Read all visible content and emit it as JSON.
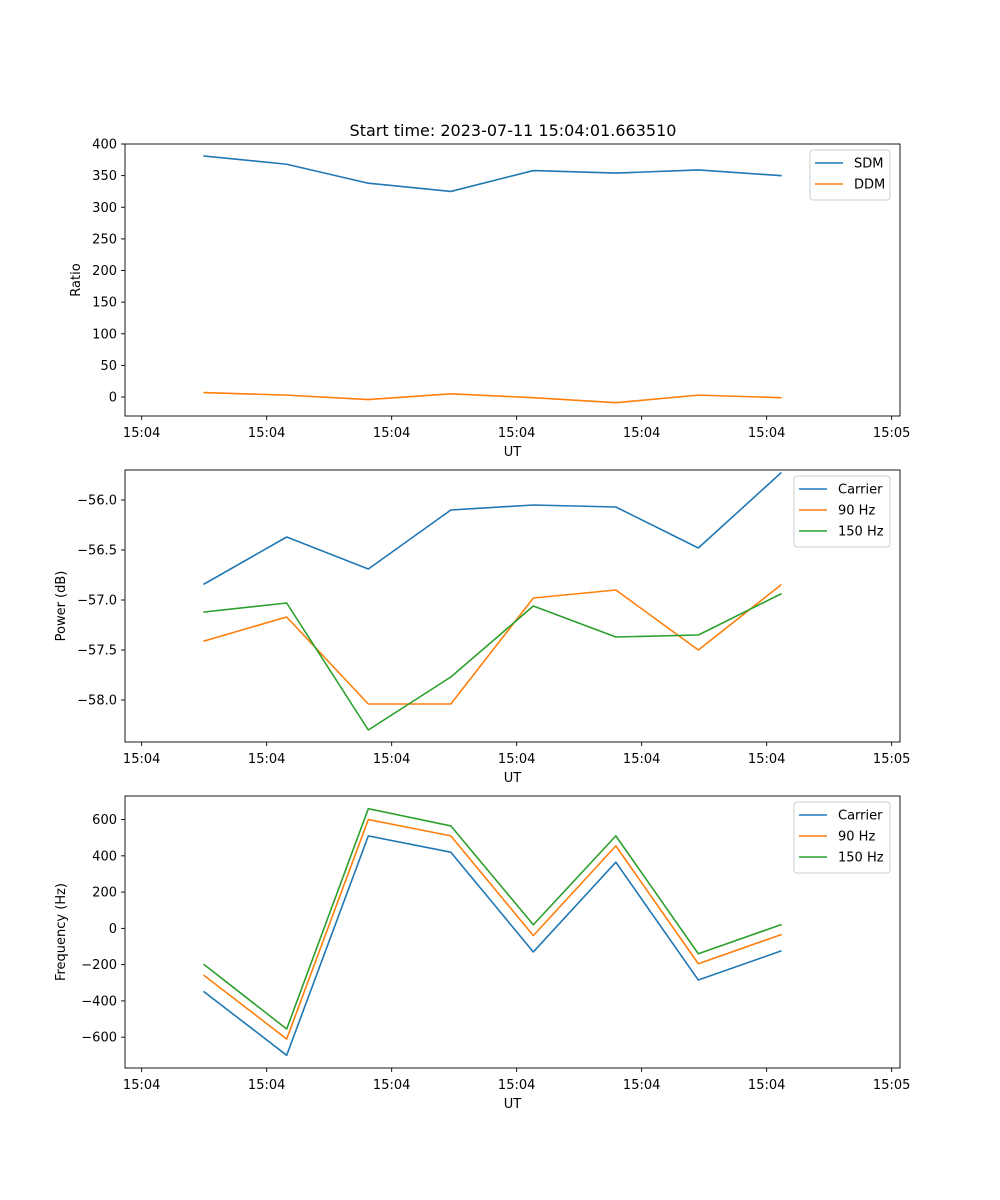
{
  "title": "Start time: 2023-07-11 15:04:01.663510",
  "chart_data": [
    {
      "type": "line",
      "xlabel": "UT",
      "ylabel": "Ratio",
      "ylim": [
        -30,
        400
      ],
      "yticks": [
        0,
        50,
        100,
        150,
        200,
        250,
        300,
        350,
        400
      ],
      "ytick_labels": [
        "0",
        "50",
        "100",
        "150",
        "200",
        "250",
        "300",
        "350",
        "400"
      ],
      "xlim": [
        -0.2,
        9.1
      ],
      "xticks": [
        0,
        1.5,
        3,
        4.5,
        6,
        7.5,
        9
      ],
      "xtick_labels": [
        "15:04",
        "15:04",
        "15:04",
        "15:04",
        "15:04",
        "15:04",
        "15:05"
      ],
      "x": [
        0.75,
        1.74,
        2.72,
        3.71,
        4.7,
        5.69,
        6.68,
        7.67
      ],
      "legend_position": "top-right",
      "series": [
        {
          "name": "SDM",
          "color": "#1f77b4",
          "values": [
            381,
            368,
            338,
            325,
            358,
            354,
            359,
            350
          ]
        },
        {
          "name": "DDM",
          "color": "#ff7f0e",
          "values": [
            7,
            3,
            -4,
            5,
            -1,
            -9,
            3,
            -1
          ]
        }
      ]
    },
    {
      "type": "line",
      "xlabel": "UT",
      "ylabel": "Power (dB)",
      "ylim": [
        -58.42,
        -55.7
      ],
      "yticks": [
        -58.0,
        -57.5,
        -57.0,
        -56.5,
        -56.0
      ],
      "ytick_labels": [
        "−58.0",
        "−57.5",
        "−57.0",
        "−56.5",
        "−56.0"
      ],
      "xlim": [
        -0.2,
        9.1
      ],
      "xticks": [
        0,
        1.5,
        3,
        4.5,
        6,
        7.5,
        9
      ],
      "xtick_labels": [
        "15:04",
        "15:04",
        "15:04",
        "15:04",
        "15:04",
        "15:04",
        "15:05"
      ],
      "x": [
        0.75,
        1.74,
        2.72,
        3.71,
        4.7,
        5.69,
        6.68,
        7.67
      ],
      "legend_position": "top-right",
      "series": [
        {
          "name": "Carrier",
          "color": "#1f77b4",
          "values": [
            -56.84,
            -56.37,
            -56.69,
            -56.1,
            -56.05,
            -56.07,
            -56.48,
            -55.73
          ]
        },
        {
          "name": "90 Hz",
          "color": "#ff7f0e",
          "values": [
            -57.41,
            -57.17,
            -58.04,
            -58.04,
            -56.98,
            -56.9,
            -57.5,
            -56.85
          ]
        },
        {
          "name": "150 Hz",
          "color": "#2ca02c",
          "values": [
            -57.12,
            -57.03,
            -58.3,
            -57.77,
            -57.06,
            -57.37,
            -57.35,
            -56.94
          ]
        }
      ]
    },
    {
      "type": "line",
      "xlabel": "UT",
      "ylabel": "Frequency (Hz)",
      "ylim": [
        -770,
        730
      ],
      "yticks": [
        -600,
        -400,
        -200,
        0,
        200,
        400,
        600
      ],
      "ytick_labels": [
        "−600",
        "−400",
        "−200",
        "0",
        "200",
        "400",
        "600"
      ],
      "xlim": [
        -0.2,
        9.1
      ],
      "xticks": [
        0,
        1.5,
        3,
        4.5,
        6,
        7.5,
        9
      ],
      "xtick_labels": [
        "15:04",
        "15:04",
        "15:04",
        "15:04",
        "15:04",
        "15:04",
        "15:05"
      ],
      "x": [
        0.75,
        1.74,
        2.72,
        3.71,
        4.7,
        5.69,
        6.68,
        7.67
      ],
      "legend_position": "top-right",
      "series": [
        {
          "name": "Carrier",
          "color": "#1f77b4",
          "values": [
            -350,
            -700,
            510,
            420,
            -130,
            365,
            -285,
            -125
          ]
        },
        {
          "name": "90 Hz",
          "color": "#ff7f0e",
          "values": [
            -260,
            -610,
            600,
            510,
            -40,
            455,
            -195,
            -35
          ]
        },
        {
          "name": "150 Hz",
          "color": "#2ca02c",
          "values": [
            -200,
            -555,
            660,
            565,
            20,
            510,
            -140,
            20
          ]
        }
      ]
    }
  ]
}
